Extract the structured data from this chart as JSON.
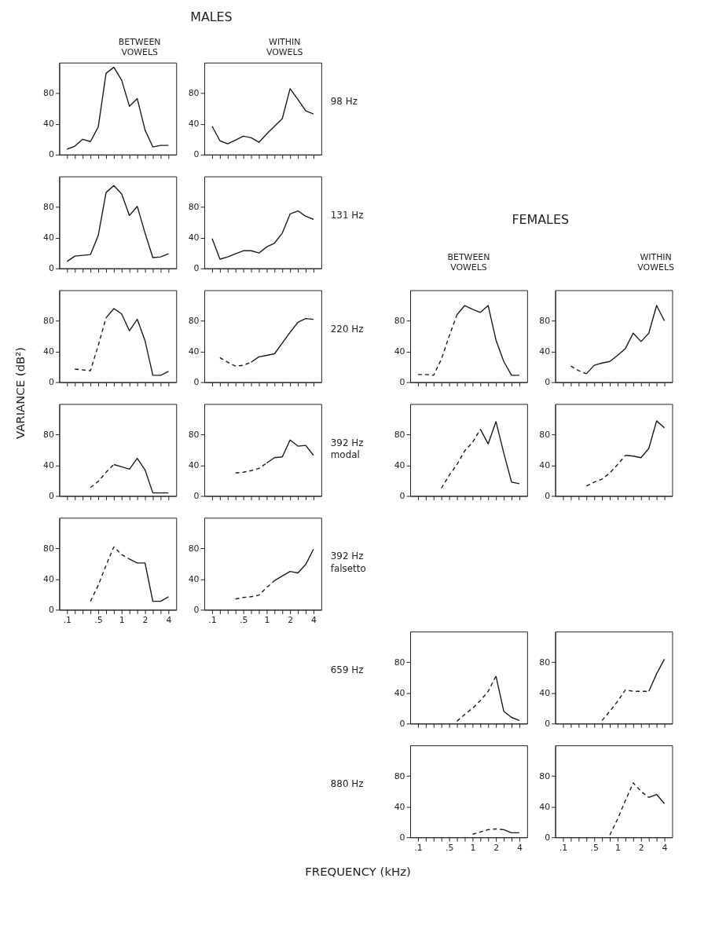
{
  "chart_data": [
    {
      "type": "line",
      "categories": [
        ".1",
        null,
        null,
        null,
        ".5",
        null,
        null,
        "1",
        null,
        null,
        "2",
        null,
        null,
        "4"
      ],
      "ylim": [
        0,
        120
      ],
      "yticks": [
        0,
        40,
        80
      ],
      "tick_labels": "y",
      "series": [
        {
          "color": "#1a1a1a",
          "line_style": "solid",
          "values": [
            7,
            11,
            20,
            17,
            36,
            106,
            114,
            97,
            63,
            73,
            32,
            10,
            12,
            12
          ]
        }
      ]
    },
    {
      "type": "line",
      "categories": [
        ".1",
        null,
        null,
        null,
        ".5",
        null,
        null,
        "1",
        null,
        null,
        "2",
        null,
        null,
        "4"
      ],
      "ylim": [
        0,
        120
      ],
      "yticks": [
        0,
        40,
        80
      ],
      "tick_labels": "y",
      "series": [
        {
          "color": "#1a1a1a",
          "line_style": "solid",
          "values": [
            37,
            18,
            14,
            19,
            24,
            22,
            16,
            27,
            37,
            47,
            86,
            72,
            57,
            53
          ]
        }
      ]
    },
    {
      "type": "line",
      "categories": [
        ".1",
        null,
        null,
        null,
        ".5",
        null,
        null,
        "1",
        null,
        null,
        "2",
        null,
        null,
        "4"
      ],
      "ylim": [
        0,
        120
      ],
      "yticks": [
        0,
        40,
        80
      ],
      "tick_labels": "y",
      "series": [
        {
          "color": "#1a1a1a",
          "line_style": "solid",
          "values": [
            9,
            16,
            17,
            18,
            43,
            99,
            108,
            97,
            69,
            81,
            46,
            14,
            15,
            19
          ]
        }
      ]
    },
    {
      "type": "line",
      "categories": [
        ".1",
        null,
        null,
        null,
        ".5",
        null,
        null,
        "1",
        null,
        null,
        "2",
        null,
        null,
        "4"
      ],
      "ylim": [
        0,
        120
      ],
      "yticks": [
        0,
        40,
        80
      ],
      "tick_labels": "y",
      "series": [
        {
          "color": "#1a1a1a",
          "line_style": "solid",
          "values": [
            39,
            12,
            15,
            19,
            23,
            23,
            20,
            28,
            33,
            46,
            71,
            75,
            68,
            64
          ]
        }
      ]
    },
    {
      "type": "line",
      "categories": [
        ".1",
        null,
        null,
        null,
        ".5",
        null,
        null,
        "1",
        null,
        null,
        "2",
        null,
        null,
        "4"
      ],
      "ylim": [
        0,
        120
      ],
      "yticks": [
        0,
        40,
        80
      ],
      "tick_labels": "y",
      "series": [
        {
          "color": "#1a1a1a",
          "line_style": "dashed",
          "values": [
            null,
            17,
            16,
            15,
            48,
            84,
            null,
            null,
            null,
            null,
            null,
            null,
            null,
            null
          ]
        },
        {
          "color": "#1a1a1a",
          "line_style": "solid",
          "values": [
            null,
            null,
            null,
            null,
            null,
            84,
            96,
            89,
            67,
            82,
            54,
            9,
            9,
            14
          ]
        }
      ]
    },
    {
      "type": "line",
      "categories": [
        ".1",
        null,
        null,
        null,
        ".5",
        null,
        null,
        "1",
        null,
        null,
        "2",
        null,
        null,
        "4"
      ],
      "ylim": [
        0,
        120
      ],
      "yticks": [
        0,
        40,
        80
      ],
      "tick_labels": "y",
      "series": [
        {
          "color": "#1a1a1a",
          "line_style": "dashed",
          "values": [
            null,
            32,
            26,
            21,
            22,
            26,
            null,
            null,
            null,
            null,
            null,
            null,
            null,
            null
          ]
        },
        {
          "color": "#1a1a1a",
          "line_style": "solid",
          "values": [
            null,
            null,
            null,
            null,
            null,
            26,
            33,
            35,
            37,
            51,
            65,
            78,
            83,
            82
          ]
        }
      ]
    },
    {
      "type": "line",
      "categories": [
        ".1",
        null,
        null,
        null,
        ".5",
        null,
        null,
        "1",
        null,
        null,
        "2",
        null,
        null,
        "4"
      ],
      "ylim": [
        0,
        120
      ],
      "yticks": [
        0,
        40,
        80
      ],
      "tick_labels": "y",
      "series": [
        {
          "color": "#1a1a1a",
          "line_style": "dashed",
          "values": [
            10,
            10,
            9,
            30,
            60,
            88,
            null,
            null,
            null,
            null,
            null,
            null,
            null,
            null
          ]
        },
        {
          "color": "#1a1a1a",
          "line_style": "solid",
          "values": [
            null,
            null,
            null,
            null,
            null,
            88,
            100,
            95,
            91,
            100,
            55,
            27,
            9,
            9
          ]
        }
      ]
    },
    {
      "type": "line",
      "categories": [
        ".1",
        null,
        null,
        null,
        ".5",
        null,
        null,
        "1",
        null,
        null,
        "2",
        null,
        null,
        "4"
      ],
      "ylim": [
        0,
        120
      ],
      "yticks": [
        0,
        40,
        80
      ],
      "tick_labels": "y",
      "series": [
        {
          "color": "#1a1a1a",
          "line_style": "solid",
          "values": [
            null,
            null,
            null,
            11,
            22,
            25,
            27,
            35,
            44,
            64,
            53,
            64,
            100,
            80
          ]
        },
        {
          "color": "#1a1a1a",
          "line_style": "dashed",
          "values": [
            null,
            21,
            15,
            11,
            null,
            null,
            null,
            null,
            null,
            null,
            null,
            null,
            null,
            null
          ]
        }
      ]
    },
    {
      "type": "line",
      "categories": [
        ".1",
        null,
        null,
        null,
        ".5",
        null,
        null,
        "1",
        null,
        null,
        "2",
        null,
        null,
        "4"
      ],
      "ylim": [
        0,
        120
      ],
      "yticks": [
        0,
        40,
        80
      ],
      "tick_labels": "y",
      "series": [
        {
          "color": "#1a1a1a",
          "line_style": "dashed",
          "values": [
            null,
            null,
            null,
            11,
            19,
            31,
            41,
            null,
            null,
            null,
            null,
            null,
            null,
            null
          ]
        },
        {
          "color": "#1a1a1a",
          "line_style": "solid",
          "values": [
            null,
            null,
            null,
            null,
            null,
            null,
            41,
            38,
            35,
            49,
            34,
            4,
            4,
            4
          ]
        }
      ]
    },
    {
      "type": "line",
      "categories": [
        ".1",
        null,
        null,
        null,
        ".5",
        null,
        null,
        "1",
        null,
        null,
        "2",
        null,
        null,
        "4"
      ],
      "ylim": [
        0,
        120
      ],
      "yticks": [
        0,
        40,
        80
      ],
      "tick_labels": "y",
      "series": [
        {
          "color": "#1a1a1a",
          "line_style": "dashed",
          "values": [
            null,
            null,
            null,
            30,
            31,
            33,
            36,
            43,
            null,
            null,
            null,
            null,
            null,
            null
          ]
        },
        {
          "color": "#1a1a1a",
          "line_style": "solid",
          "values": [
            null,
            null,
            null,
            null,
            null,
            null,
            null,
            43,
            50,
            51,
            73,
            65,
            66,
            53
          ]
        }
      ]
    },
    {
      "type": "line",
      "categories": [
        ".1",
        null,
        null,
        null,
        ".5",
        null,
        null,
        "1",
        null,
        null,
        "2",
        null,
        null,
        "4"
      ],
      "ylim": [
        0,
        120
      ],
      "yticks": [
        0,
        40,
        80
      ],
      "tick_labels": "y",
      "series": [
        {
          "color": "#1a1a1a",
          "line_style": "dashed",
          "values": [
            null,
            null,
            null,
            10,
            27,
            41,
            59,
            70,
            87,
            null,
            null,
            null,
            null,
            null
          ]
        },
        {
          "color": "#1a1a1a",
          "line_style": "solid",
          "values": [
            null,
            null,
            null,
            null,
            null,
            null,
            null,
            null,
            87,
            68,
            97,
            56,
            18,
            16
          ]
        }
      ]
    },
    {
      "type": "line",
      "categories": [
        ".1",
        null,
        null,
        null,
        ".5",
        null,
        null,
        "1",
        null,
        null,
        "2",
        null,
        null,
        "4"
      ],
      "ylim": [
        0,
        120
      ],
      "yticks": [
        0,
        40,
        80
      ],
      "tick_labels": "y",
      "series": [
        {
          "color": "#1a1a1a",
          "line_style": "dashed",
          "values": [
            null,
            null,
            null,
            13,
            18,
            22,
            30,
            41,
            53,
            null,
            null,
            null,
            null,
            null
          ]
        },
        {
          "color": "#1a1a1a",
          "line_style": "solid",
          "values": [
            null,
            null,
            null,
            null,
            null,
            null,
            null,
            null,
            53,
            52,
            50,
            62,
            98,
            89
          ]
        }
      ]
    },
    {
      "type": "line",
      "categories": [
        ".1",
        null,
        null,
        null,
        ".5",
        null,
        null,
        "1",
        null,
        null,
        "2",
        null,
        null,
        "4"
      ],
      "ylim": [
        0,
        120
      ],
      "yticks": [
        0,
        40,
        80
      ],
      "series": [
        {
          "color": "#1a1a1a",
          "line_style": "dashed",
          "values": [
            null,
            null,
            null,
            11,
            32,
            58,
            82,
            72,
            66,
            null,
            null,
            null,
            null,
            null
          ]
        },
        {
          "color": "#1a1a1a",
          "line_style": "solid",
          "values": [
            null,
            null,
            null,
            null,
            null,
            null,
            null,
            null,
            66,
            61,
            61,
            11,
            11,
            17
          ]
        }
      ]
    },
    {
      "type": "line",
      "categories": [
        ".1",
        null,
        null,
        null,
        ".5",
        null,
        null,
        "1",
        null,
        null,
        "2",
        null,
        null,
        "4"
      ],
      "ylim": [
        0,
        120
      ],
      "yticks": [
        0,
        40,
        80
      ],
      "series": [
        {
          "color": "#1a1a1a",
          "line_style": "dashed",
          "values": [
            null,
            null,
            null,
            14,
            16,
            17,
            19,
            29,
            38,
            null,
            null,
            null,
            null,
            null
          ]
        },
        {
          "color": "#1a1a1a",
          "line_style": "solid",
          "values": [
            null,
            null,
            null,
            null,
            null,
            null,
            null,
            null,
            38,
            44,
            50,
            48,
            59,
            79
          ]
        }
      ]
    },
    {
      "type": "line",
      "categories": [
        ".1",
        null,
        null,
        null,
        ".5",
        null,
        null,
        "1",
        null,
        null,
        "2",
        null,
        null,
        "4"
      ],
      "ylim": [
        0,
        120
      ],
      "yticks": [
        0,
        40,
        80
      ],
      "tick_labels": "y",
      "series": [
        {
          "color": "#1a1a1a",
          "line_style": "dashed",
          "values": [
            null,
            null,
            null,
            null,
            null,
            3,
            12,
            20,
            30,
            42,
            62,
            null,
            null,
            null
          ]
        },
        {
          "color": "#1a1a1a",
          "line_style": "solid",
          "values": [
            null,
            null,
            null,
            null,
            null,
            null,
            null,
            null,
            null,
            null,
            62,
            16,
            8,
            4
          ]
        }
      ]
    },
    {
      "type": "line",
      "categories": [
        ".1",
        null,
        null,
        null,
        ".5",
        null,
        null,
        "1",
        null,
        null,
        "2",
        null,
        null,
        "4"
      ],
      "ylim": [
        0,
        120
      ],
      "yticks": [
        0,
        40,
        80
      ],
      "tick_labels": "y",
      "series": [
        {
          "color": "#1a1a1a",
          "line_style": "dashed",
          "values": [
            null,
            null,
            null,
            null,
            null,
            4,
            16,
            29,
            44,
            42,
            42,
            42,
            null,
            null
          ]
        },
        {
          "color": "#1a1a1a",
          "line_style": "solid",
          "values": [
            null,
            null,
            null,
            null,
            null,
            null,
            null,
            null,
            null,
            null,
            null,
            42,
            65,
            84
          ]
        }
      ]
    },
    {
      "type": "line",
      "categories": [
        ".1",
        null,
        null,
        null,
        ".5",
        null,
        null,
        "1",
        null,
        null,
        "2",
        null,
        null,
        "4"
      ],
      "ylim": [
        0,
        120
      ],
      "yticks": [
        0,
        40,
        80
      ],
      "series": [
        {
          "color": "#1a1a1a",
          "line_style": "dashed",
          "values": [
            null,
            null,
            null,
            null,
            null,
            null,
            null,
            4,
            7,
            10,
            11,
            10,
            null,
            null
          ]
        },
        {
          "color": "#1a1a1a",
          "line_style": "solid",
          "values": [
            null,
            null,
            null,
            null,
            null,
            null,
            null,
            null,
            null,
            null,
            null,
            10,
            6,
            6
          ]
        }
      ]
    },
    {
      "type": "line",
      "categories": [
        ".1",
        null,
        null,
        null,
        ".5",
        null,
        null,
        "1",
        null,
        null,
        "2",
        null,
        null,
        "4"
      ],
      "ylim": [
        0,
        120
      ],
      "yticks": [
        0,
        40,
        80
      ],
      "series": [
        {
          "color": "#1a1a1a",
          "line_style": "dashed",
          "values": [
            null,
            null,
            null,
            null,
            null,
            null,
            3,
            24,
            48,
            71,
            60,
            52,
            null,
            null
          ]
        },
        {
          "color": "#1a1a1a",
          "line_style": "solid",
          "values": [
            null,
            null,
            null,
            null,
            null,
            null,
            null,
            null,
            null,
            null,
            null,
            52,
            56,
            44
          ]
        }
      ]
    },
    {
      "type": "other",
      "title": "MALES",
      "annotations": [
        "BETWEEN VOWELS",
        "WITHIN VOWELS"
      ]
    },
    {
      "type": "other",
      "title": "FEMALES",
      "annotations": [
        "BETWEEN VOWELS",
        "WITHIN VOWELS"
      ]
    },
    {
      "type": "other",
      "annotations": [
        "98 Hz",
        "131 Hz",
        "220 Hz",
        "392 Hz",
        "modal",
        "392 Hz",
        "falsetto",
        "659 Hz",
        "880 Hz"
      ]
    },
    {
      "type": "other",
      "xlabel": "FREQUENCY (kHz)",
      "ylabel": "VARIANCE (dB²)"
    }
  ]
}
